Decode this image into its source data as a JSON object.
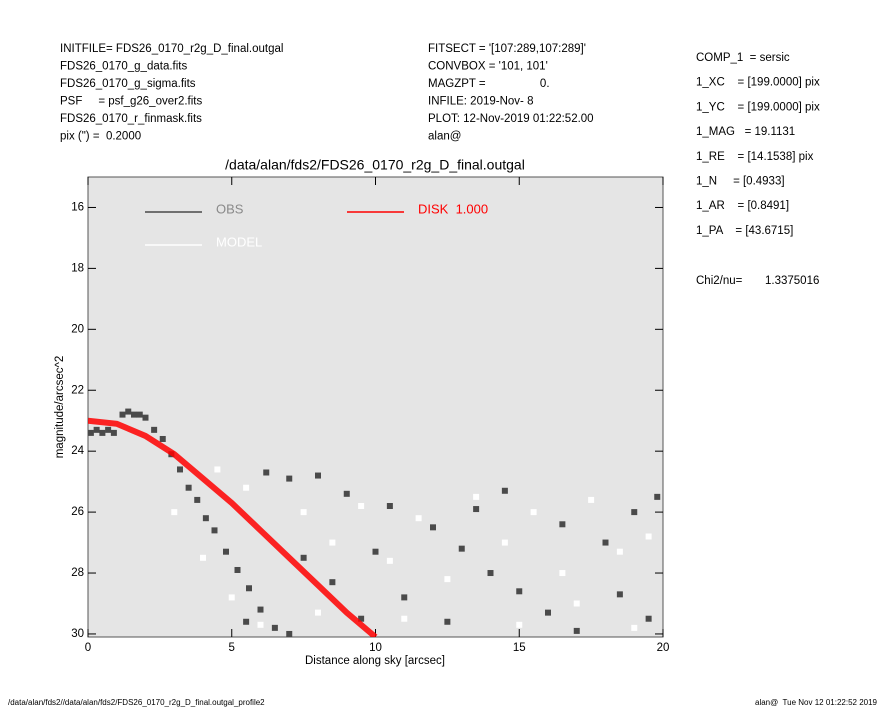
{
  "header": {
    "left": [
      "INITFILE= FDS26_0170_r2g_D_final.outgal",
      "FDS26_0170_g_data.fits",
      "FDS26_0170_g_sigma.fits",
      "PSF     = psf_g26_over2.fits",
      "FDS26_0170_r_finmask.fits",
      "pix (\") =  0.2000"
    ],
    "middle": [
      "FITSECT = '[107:289,107:289]'",
      "CONVBOX = '101, 101'",
      "MAGZPT =                 0.",
      "INFILE: 2019-Nov- 8",
      "PLOT: 12-Nov-2019 01:22:52.00",
      "alan@"
    ],
    "right": [
      "COMP_1  = sersic",
      "1_XC    = [199.0000] pix",
      "1_YC    = [199.0000] pix",
      "1_MAG   = 19.1131",
      "1_RE    = [14.1538] pix",
      "1_N     = [0.4933]",
      "1_AR    = [0.8491]",
      "1_PA    = [43.6715]"
    ],
    "chi_label": "Chi2/nu=",
    "chi_value": "1.3375016"
  },
  "footer": {
    "left": "/data/alan/fds2//data/alan/fds2/FDS26_0170_r2g_D_final.outgal_profile2",
    "right": "alan@  Tue Nov 12 01:22:52 2019"
  },
  "chart_data": {
    "type": "scatter",
    "title": "/data/alan/fds2/FDS26_0170_r2g_D_final.outgal",
    "x_label": "Distance along sky [arcsec]",
    "y_label": "magnitude/arcsec^2",
    "xlim": [
      0,
      20
    ],
    "xticks": [
      0,
      5,
      10,
      15,
      20
    ],
    "ylim": [
      15,
      30.1
    ],
    "yticks": [
      16,
      18,
      20,
      22,
      24,
      26,
      28,
      30
    ],
    "y_inverted": true,
    "background": "#e5e5e5",
    "series": [
      {
        "name": "OBS",
        "color": "#4a4a4a",
        "mark": "point",
        "x": [
          0.1,
          0.3,
          0.5,
          0.7,
          0.9,
          1.2,
          1.4,
          1.6,
          1.8,
          2.0,
          2.3,
          2.6,
          2.9,
          3.2,
          3.5,
          3.8,
          4.1,
          4.4,
          4.8,
          5.2,
          5.6,
          6.0,
          6.5,
          7.0,
          6.2,
          7.0,
          8.0,
          9.0,
          10.5,
          12.0,
          13.0,
          14.0,
          15.0,
          16.0,
          17.0,
          18.0,
          19.0,
          19.8,
          11.0,
          12.5,
          9.5,
          8.5,
          7.5,
          14.5,
          16.5,
          18.5,
          19.5,
          5.5,
          10.0,
          13.5
        ],
        "values": [
          23.4,
          23.3,
          23.4,
          23.3,
          23.4,
          22.8,
          22.7,
          22.8,
          22.8,
          22.9,
          23.3,
          23.6,
          24.1,
          24.6,
          25.2,
          25.6,
          26.2,
          26.6,
          27.3,
          27.9,
          28.5,
          29.2,
          29.8,
          30.0,
          24.7,
          24.9,
          24.8,
          25.4,
          25.8,
          26.5,
          27.2,
          28.0,
          28.6,
          29.3,
          29.9,
          27.0,
          26.0,
          25.5,
          28.8,
          29.6,
          29.5,
          28.3,
          27.5,
          25.3,
          26.4,
          28.7,
          29.5,
          29.6,
          27.3,
          25.9
        ]
      },
      {
        "name": "MODEL",
        "color": "#ffffff",
        "mark": "point",
        "x": [
          3.0,
          4.0,
          5.0,
          6.0,
          7.5,
          8.5,
          9.5,
          10.5,
          11.5,
          12.5,
          13.5,
          14.5,
          15.5,
          16.5,
          17.5,
          18.5,
          19.5,
          11.0,
          15.0,
          17.0,
          19.0,
          8.0,
          4.5,
          5.5
        ],
        "values": [
          26.0,
          27.5,
          28.8,
          29.7,
          26.0,
          27.0,
          25.8,
          27.6,
          26.2,
          28.2,
          25.5,
          27.0,
          26.0,
          28.0,
          25.6,
          27.3,
          26.8,
          29.5,
          29.7,
          29.0,
          29.8,
          29.3,
          24.6,
          25.2
        ]
      },
      {
        "name": "DISK  1.000",
        "color": "#ff0000",
        "mark": "line",
        "x": [
          0,
          1,
          2,
          3,
          4,
          5,
          6,
          7,
          8,
          9,
          10
        ],
        "values": [
          23.0,
          23.1,
          23.5,
          24.1,
          24.9,
          25.7,
          26.6,
          27.5,
          28.4,
          29.3,
          30.1
        ]
      }
    ]
  }
}
